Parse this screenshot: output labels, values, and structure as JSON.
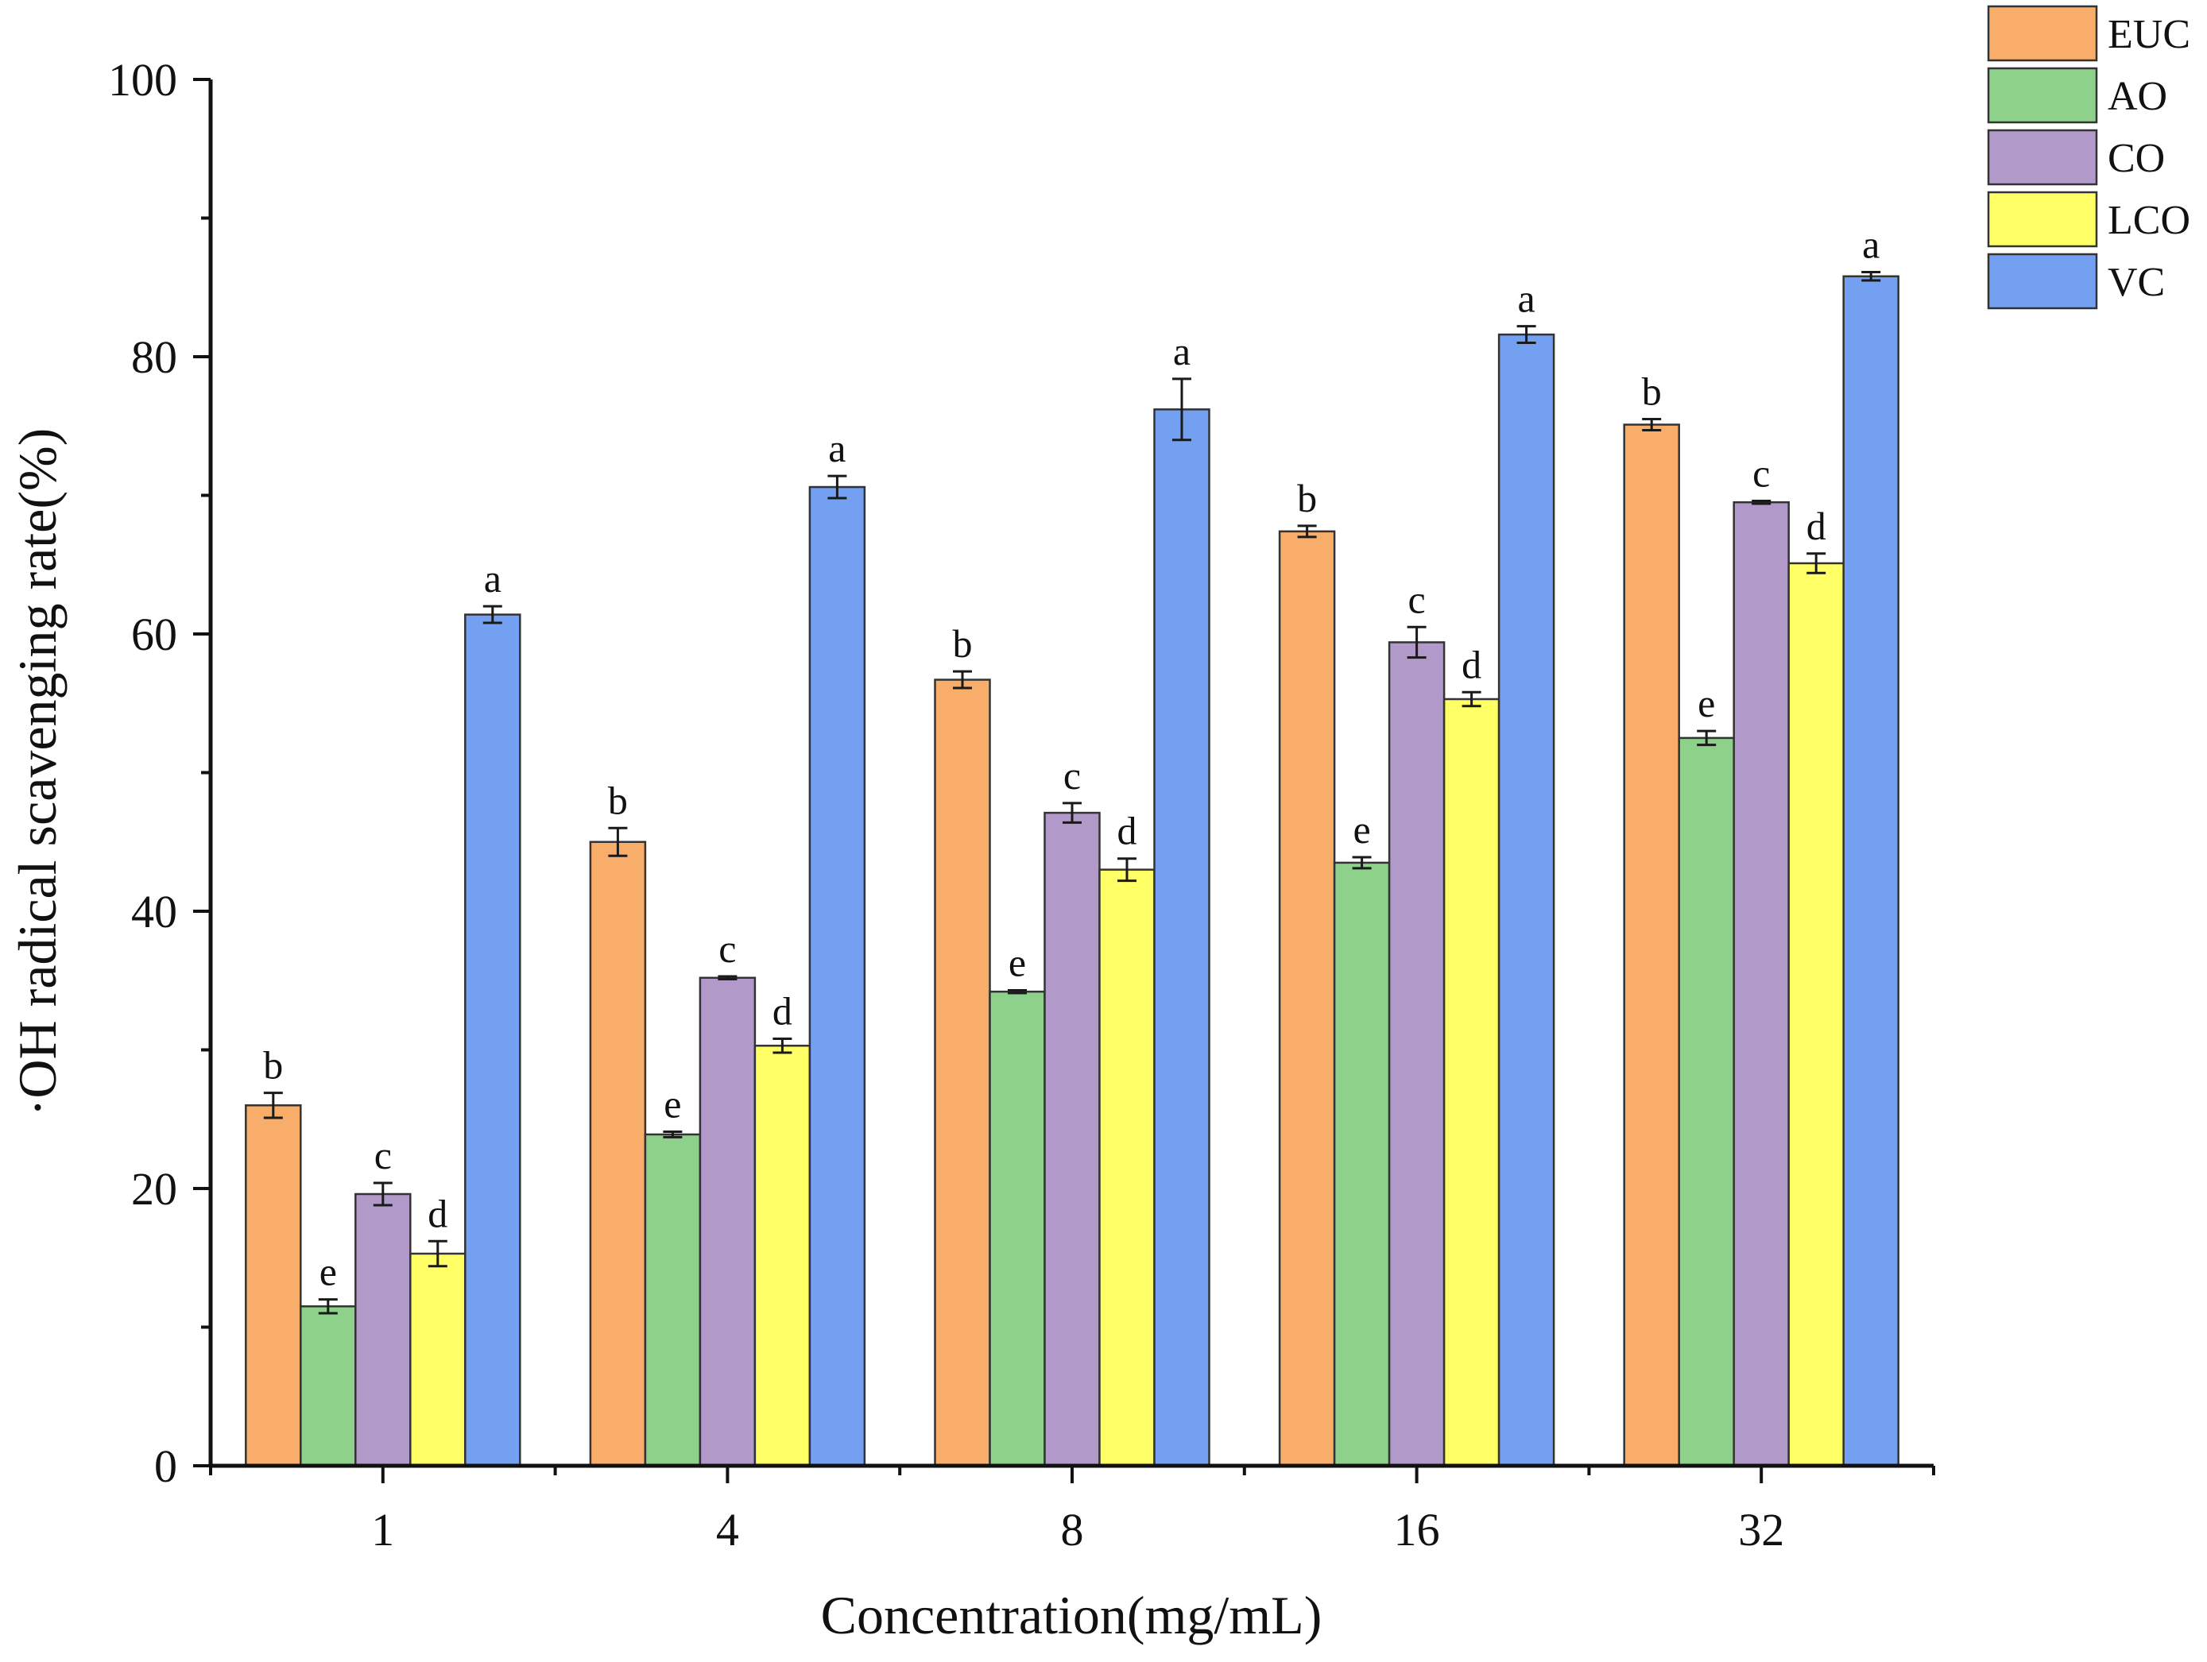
{
  "chart_data": {
    "type": "bar",
    "title": "",
    "xlabel": "Concentration(mg/mL)",
    "ylabel": "·OH radical scavenging rate(%)",
    "ylim": [
      0,
      100
    ],
    "yticks": [
      0,
      20,
      40,
      60,
      80,
      100
    ],
    "categories": [
      "1",
      "4",
      "8",
      "16",
      "32"
    ],
    "legend_position": "top-right",
    "series": [
      {
        "name": "EUC",
        "color": "#F9AD6A",
        "values": [
          26.0,
          45.0,
          56.7,
          67.4,
          75.1
        ],
        "errors": [
          0.9,
          1.0,
          0.6,
          0.4,
          0.4
        ],
        "letters": [
          "b",
          "b",
          "b",
          "b",
          "b"
        ]
      },
      {
        "name": "AO",
        "color": "#8ED18B",
        "values": [
          11.5,
          23.9,
          34.2,
          43.5,
          52.5
        ],
        "errors": [
          0.5,
          0.2,
          0.1,
          0.4,
          0.5
        ],
        "letters": [
          "e",
          "e",
          "e",
          "e",
          "e"
        ]
      },
      {
        "name": "CO",
        "color": "#B19AC9",
        "values": [
          19.6,
          35.2,
          47.1,
          59.4,
          69.5
        ],
        "errors": [
          0.8,
          0.1,
          0.7,
          1.1,
          0.1
        ],
        "letters": [
          "c",
          "c",
          "c",
          "c",
          "c"
        ]
      },
      {
        "name": "LCO",
        "color": "#FFFF66",
        "values": [
          15.3,
          30.3,
          43.0,
          55.3,
          65.1
        ],
        "errors": [
          0.9,
          0.5,
          0.8,
          0.5,
          0.7
        ],
        "letters": [
          "d",
          "d",
          "d",
          "d",
          "d"
        ]
      },
      {
        "name": "VC",
        "color": "#73A0F0",
        "values": [
          61.4,
          70.6,
          76.2,
          81.6,
          85.8
        ],
        "errors": [
          0.6,
          0.8,
          2.2,
          0.6,
          0.3
        ],
        "letters": [
          "a",
          "a",
          "a",
          "a",
          "a"
        ]
      }
    ]
  }
}
